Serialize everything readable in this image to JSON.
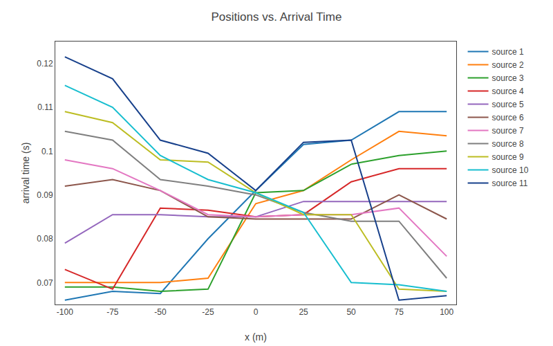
{
  "chart_data": {
    "type": "line",
    "title": "Positions vs. Arrival Time",
    "xlabel": "x (m)",
    "ylabel": "arrival time (s)",
    "x": [
      -100,
      -75,
      -50,
      -25,
      0,
      25,
      50,
      75,
      100
    ],
    "series": [
      {
        "name": "source 1",
        "values": [
          0.066,
          0.068,
          0.0675,
          0.08,
          0.091,
          0.1015,
          0.1025,
          0.109,
          0.109
        ]
      },
      {
        "name": "source 2",
        "values": [
          0.07,
          0.07,
          0.07,
          0.071,
          0.088,
          0.091,
          0.098,
          0.1045,
          0.1035
        ]
      },
      {
        "name": "source 3",
        "values": [
          0.069,
          0.069,
          0.068,
          0.0685,
          0.0905,
          0.091,
          0.097,
          0.099,
          0.1
        ]
      },
      {
        "name": "source 4",
        "values": [
          0.073,
          0.0685,
          0.087,
          0.0865,
          0.085,
          0.0855,
          0.093,
          0.096,
          0.096
        ]
      },
      {
        "name": "source 5",
        "values": [
          0.079,
          0.0855,
          0.0855,
          0.085,
          0.085,
          0.0885,
          0.0885,
          0.0885,
          0.0885
        ]
      },
      {
        "name": "source 6",
        "values": [
          0.092,
          0.0935,
          0.091,
          0.085,
          0.0845,
          0.0845,
          0.0845,
          0.09,
          0.0845
        ]
      },
      {
        "name": "source 7",
        "values": [
          0.098,
          0.096,
          0.091,
          0.0855,
          0.085,
          0.0855,
          0.0855,
          0.087,
          0.076
        ]
      },
      {
        "name": "source 8",
        "values": [
          0.1045,
          0.1025,
          0.0935,
          0.092,
          0.09,
          0.086,
          0.084,
          0.084,
          0.071
        ]
      },
      {
        "name": "source 9",
        "values": [
          0.109,
          0.1065,
          0.098,
          0.0975,
          0.0905,
          0.0855,
          0.0855,
          0.0685,
          0.068
        ]
      },
      {
        "name": "source 10",
        "values": [
          0.115,
          0.11,
          0.099,
          0.0935,
          0.0905,
          0.086,
          0.07,
          0.0695,
          0.068
        ]
      },
      {
        "name": "source 11",
        "color": "#17408B",
        "values": [
          0.1215,
          0.1165,
          0.1025,
          0.0995,
          0.091,
          0.102,
          0.1025,
          0.066,
          0.067
        ]
      }
    ],
    "xlim": [
      -105,
      105
    ],
    "ylim": [
      0.065,
      0.125
    ],
    "xticks": [
      -100,
      -75,
      -50,
      -25,
      0,
      25,
      50,
      75,
      100
    ],
    "yticks": [
      0.07,
      0.08,
      0.09,
      0.1,
      0.11,
      0.12
    ],
    "grid": false,
    "legend": "upper right"
  }
}
